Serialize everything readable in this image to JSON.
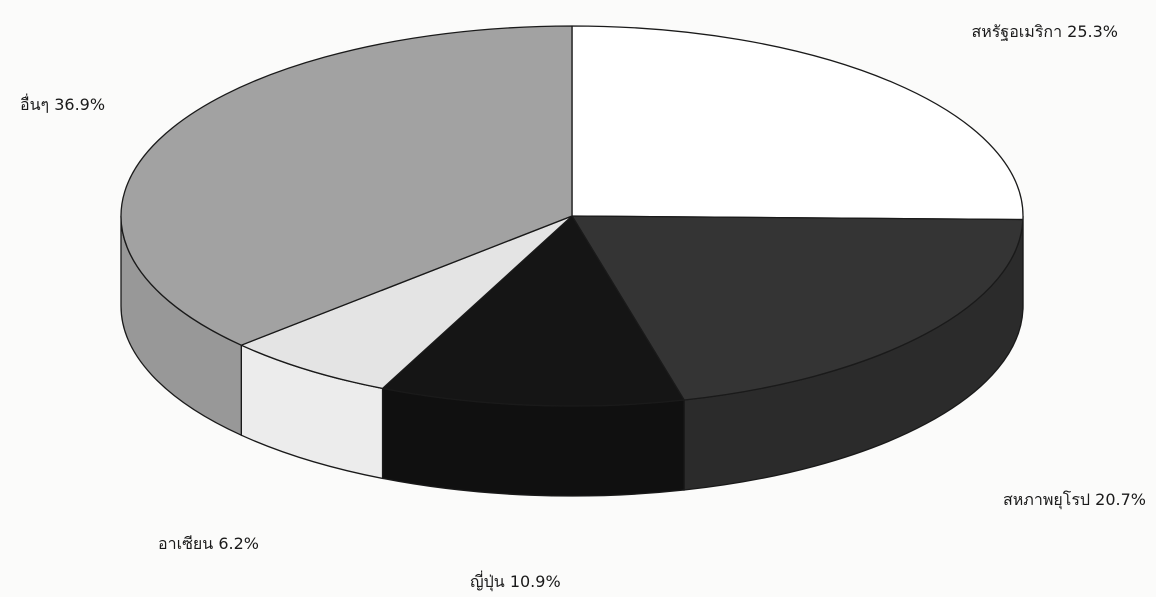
{
  "chart_data": {
    "type": "pie",
    "style": "3d",
    "slices": [
      {
        "label": "สหรัฐอเมริกา",
        "value": 25.3,
        "value_text": "25.3%",
        "color": "#ffffff",
        "side_color": "#f4f4f4"
      },
      {
        "label": "สหภาพยุโรป",
        "value": 20.7,
        "value_text": "20.7%",
        "color": "#343434",
        "side_color": "#2b2b2b"
      },
      {
        "label": "ญี่ปุ่น",
        "value": 10.9,
        "value_text": "10.9%",
        "color": "#151515",
        "side_color": "#101010"
      },
      {
        "label": "อาเซียน",
        "value": 6.2,
        "value_text": "6.2%",
        "color": "#e4e4e4",
        "side_color": "#ececec"
      },
      {
        "label": "อื่นๆ",
        "value": 36.9,
        "value_text": "36.9%",
        "color": "#a2a2a2",
        "side_color": "#989898"
      }
    ]
  }
}
